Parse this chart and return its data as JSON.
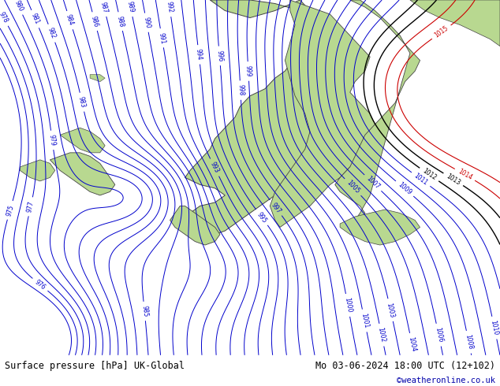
{
  "title_left": "Surface pressure [hPa] UK-Global",
  "title_right": "Mo 03-06-2024 18:00 UTC (12+102)",
  "watermark": "©weatheronline.co.uk",
  "sea_color": "#d8d8d8",
  "land_color": "#b8d890",
  "border_color": "#444444",
  "contour_color_blue": "#0000cc",
  "contour_color_black": "#000000",
  "contour_color_red": "#cc0000",
  "title_color": "#000000",
  "watermark_color": "#0000aa",
  "bottom_bar_color": "#ffffff",
  "figsize": [
    6.34,
    4.9
  ],
  "dpi": 100
}
